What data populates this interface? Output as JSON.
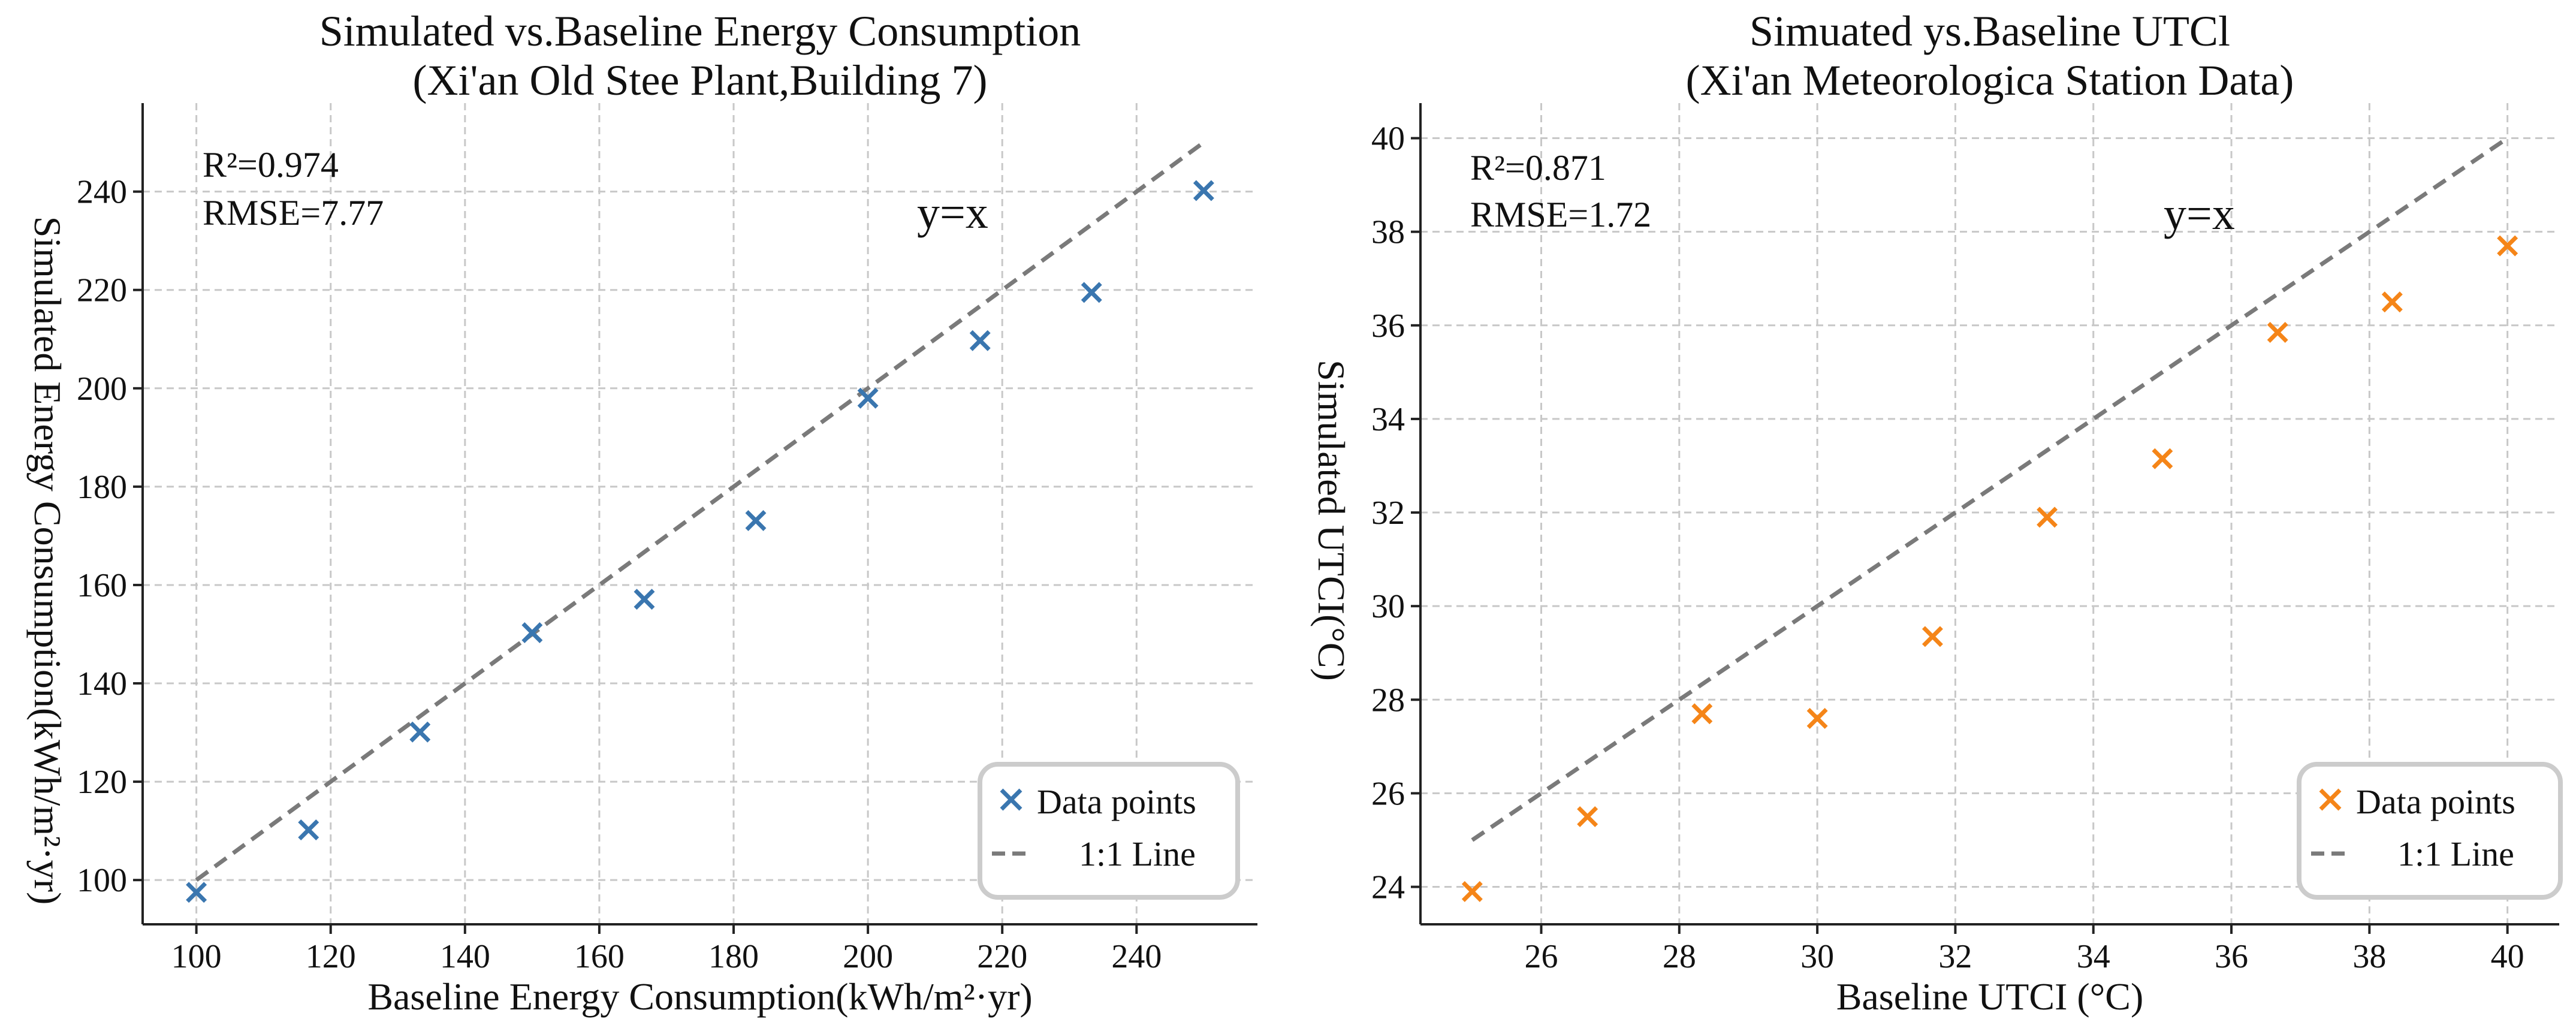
{
  "colors": {
    "series_left": "#3a76af",
    "series_right": "#f58518",
    "identity_line": "#7a7a7a",
    "grid": "#c8c8c8",
    "axis": "#222222",
    "legend_border": "#cccccc"
  },
  "chart_data": [
    {
      "type": "scatter",
      "title_line1": "Simulated vs.Baseline Energy Consumption",
      "title_line2": "(Xi'an Old Stee  Plant,Building 7)",
      "xlabel": "Baseline Energy Consumption(kWh/m²·yr)",
      "ylabel": "Simulated Energy Consumption(kWh/m²·yr)",
      "xlim": [
        92,
        258
      ],
      "ylim": [
        91,
        258
      ],
      "x_ticks": [
        100,
        120,
        140,
        160,
        180,
        200,
        220,
        240
      ],
      "y_ticks": [
        100,
        120,
        140,
        160,
        180,
        200,
        220,
        240
      ],
      "series": [
        {
          "name": "Data points",
          "marker": "x",
          "x": [
            100,
            116.7,
            133.3,
            150,
            166.7,
            183.3,
            200,
            216.7,
            233.3,
            250
          ],
          "y": [
            97.5,
            110.2,
            130.1,
            150.3,
            157.1,
            173.1,
            198.0,
            209.7,
            219.5,
            240.2
          ]
        },
        {
          "name": "1:1 Line",
          "style": "dashed",
          "x": [
            100,
            250
          ],
          "y": [
            100,
            250
          ]
        }
      ],
      "annotations": {
        "r2": "R²=0.974",
        "rmse": "RMSE=7.77",
        "identity_label": "y=x"
      },
      "legend_position": "lower right",
      "grid": true
    },
    {
      "type": "scatter",
      "title_line1": "Simuated ys.Baseline UTCl",
      "title_line2": "(Xi'an Meteorologica  Station Data)",
      "xlabel": "Baseline UTCI (°C)",
      "ylabel": "Simulated UTCI(°C)",
      "xlim": [
        24.25,
        40.75
      ],
      "ylim": [
        23.2,
        40.75
      ],
      "x_ticks": [
        26,
        28,
        30,
        32,
        34,
        36,
        38,
        40
      ],
      "y_ticks": [
        24,
        26,
        28,
        30,
        32,
        34,
        36,
        38,
        40
      ],
      "series": [
        {
          "name": "Data points",
          "marker": "x",
          "x": [
            25,
            26.67,
            28.33,
            30,
            31.67,
            33.33,
            35,
            36.67,
            38.33,
            40
          ],
          "y": [
            23.9,
            25.5,
            27.7,
            27.6,
            29.35,
            31.9,
            33.15,
            35.85,
            36.5,
            37.7
          ]
        },
        {
          "name": "1:1 Line",
          "style": "dashed",
          "x": [
            25,
            40
          ],
          "y": [
            25,
            40
          ]
        }
      ],
      "annotations": {
        "r2": "R²=0.871",
        "rmse": "RMSE=1.72",
        "identity_label": "y=x"
      },
      "legend_position": "lower right",
      "grid": true
    }
  ]
}
